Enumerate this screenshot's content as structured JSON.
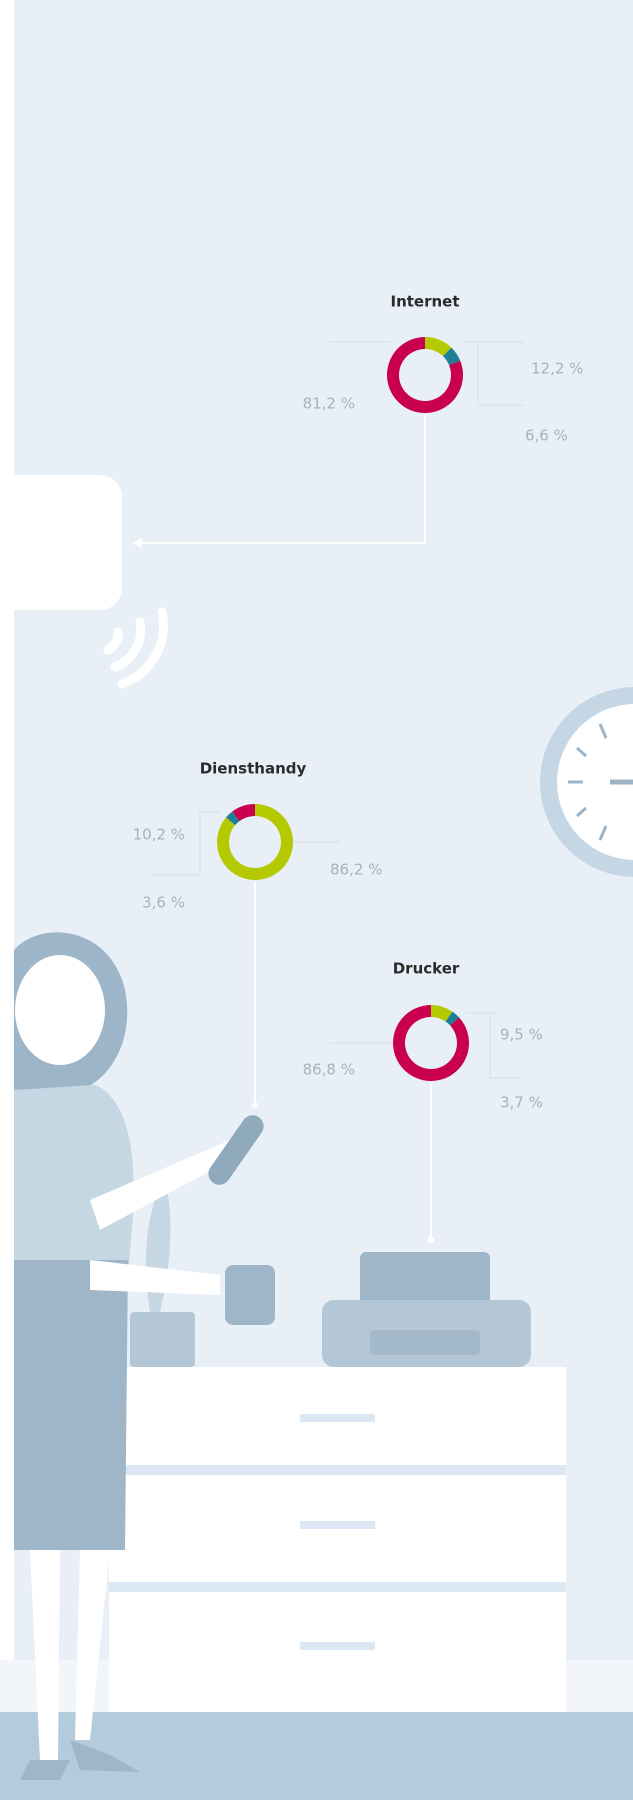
{
  "chart_data": [
    {
      "type": "pie",
      "title": "Internet",
      "values": [
        12.2,
        6.6,
        81.2
      ],
      "value_labels": [
        "12,2 %",
        "6,6 %",
        "81,2 %"
      ],
      "colors": [
        "#b5c900",
        "#1f7f96",
        "#c8004f"
      ]
    },
    {
      "type": "pie",
      "title": "Diensthandy",
      "values": [
        86.2,
        3.6,
        10.2
      ],
      "value_labels": [
        "86,2 %",
        "3,6 %",
        "10,2 %"
      ],
      "colors": [
        "#b5c900",
        "#1f7f96",
        "#c8004f"
      ]
    },
    {
      "type": "pie",
      "title": "Drucker",
      "values": [
        9.5,
        3.7,
        86.8
      ],
      "value_labels": [
        "9,5 %",
        "3,7 %",
        "86,8 %"
      ],
      "colors": [
        "#b5c900",
        "#1f7f96",
        "#c8004f"
      ]
    }
  ]
}
